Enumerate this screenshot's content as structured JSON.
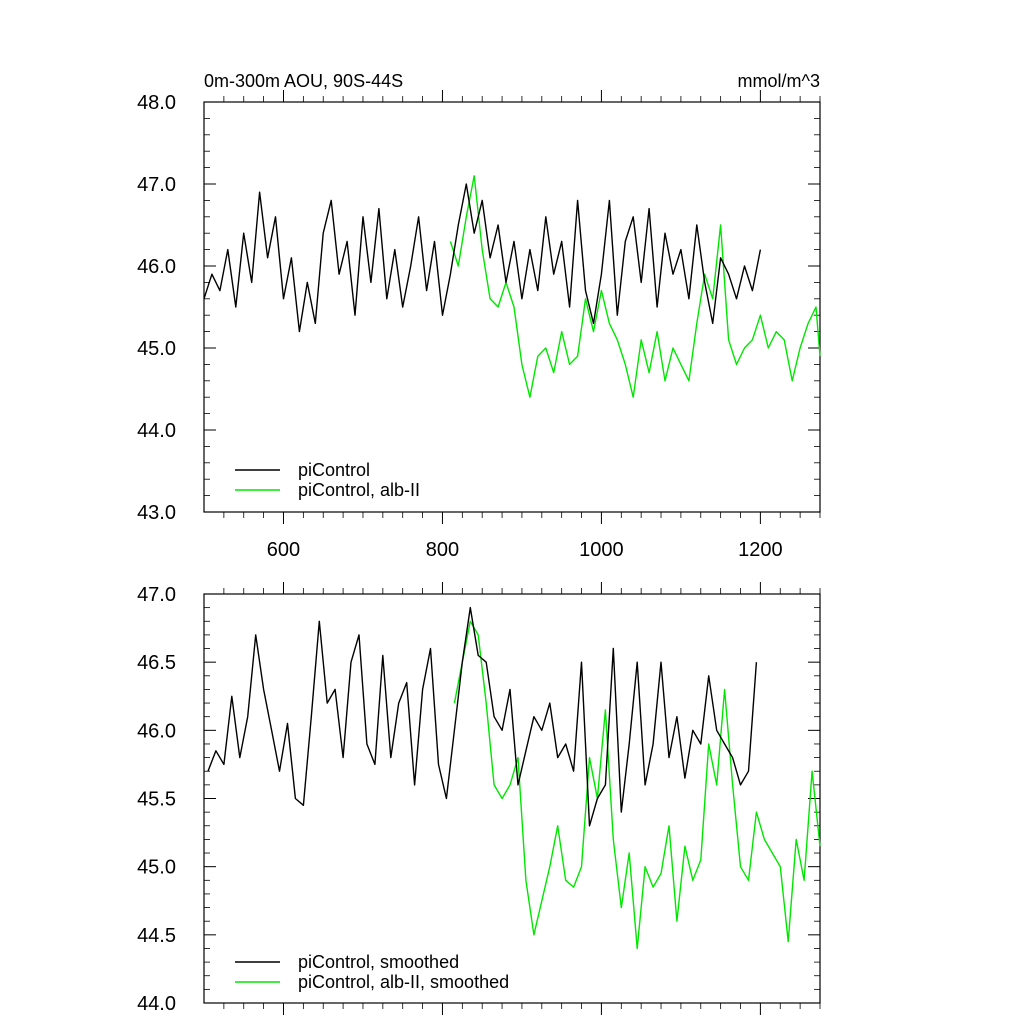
{
  "colors": {
    "control": "#000000",
    "alb": "#00e600",
    "axis": "#000000",
    "background": "#ffffff"
  },
  "chart_data": [
    {
      "type": "line",
      "title": "0m-300m AOU, 90S-44S",
      "units": "mmol/m^3",
      "xlabel": "",
      "ylabel": "",
      "xlim": [
        500,
        1275
      ],
      "ylim": [
        43.0,
        48.0
      ],
      "xticks": [
        "600",
        "800",
        "1000",
        "1200"
      ],
      "yticks": [
        "43.0",
        "44.0",
        "45.0",
        "46.0",
        "47.0",
        "48.0"
      ],
      "legend_position": "bottom-left",
      "grid": false,
      "series": [
        {
          "name": "piControl",
          "x": [
            500,
            510,
            520,
            530,
            540,
            550,
            560,
            570,
            580,
            590,
            600,
            610,
            620,
            630,
            640,
            650,
            660,
            670,
            680,
            690,
            700,
            710,
            720,
            730,
            740,
            750,
            760,
            770,
            780,
            790,
            800,
            810,
            820,
            830,
            840,
            850,
            860,
            870,
            880,
            890,
            900,
            910,
            920,
            930,
            940,
            950,
            960,
            970,
            980,
            990,
            1000,
            1010,
            1020,
            1030,
            1040,
            1050,
            1060,
            1070,
            1080,
            1090,
            1100,
            1110,
            1120,
            1130,
            1140,
            1150,
            1160,
            1170,
            1180,
            1190,
            1200
          ],
          "values": [
            45.6,
            45.9,
            45.7,
            46.2,
            45.5,
            46.4,
            45.8,
            46.9,
            46.1,
            46.6,
            45.6,
            46.1,
            45.2,
            45.8,
            45.3,
            46.4,
            46.8,
            45.9,
            46.3,
            45.4,
            46.6,
            45.8,
            46.7,
            45.6,
            46.2,
            45.5,
            46.0,
            46.6,
            45.7,
            46.3,
            45.4,
            45.9,
            46.5,
            47.0,
            46.4,
            46.8,
            46.1,
            46.5,
            45.8,
            46.3,
            45.6,
            46.2,
            45.7,
            46.6,
            45.9,
            46.3,
            45.5,
            46.8,
            45.7,
            45.3,
            45.9,
            46.8,
            45.4,
            46.3,
            46.6,
            45.8,
            46.7,
            45.5,
            46.4,
            45.9,
            46.2,
            45.6,
            46.5,
            45.8,
            45.3,
            46.1,
            45.9,
            45.6,
            46.0,
            45.7,
            46.2
          ]
        },
        {
          "name": "piControl, alb-II",
          "x": [
            810,
            820,
            830,
            840,
            850,
            860,
            870,
            880,
            890,
            900,
            910,
            920,
            930,
            940,
            950,
            960,
            970,
            980,
            990,
            1000,
            1010,
            1020,
            1030,
            1040,
            1050,
            1060,
            1070,
            1080,
            1090,
            1100,
            1110,
            1120,
            1130,
            1140,
            1150,
            1160,
            1170,
            1180,
            1190,
            1200,
            1210,
            1220,
            1230,
            1240,
            1250,
            1260,
            1270,
            1275
          ],
          "values": [
            46.3,
            46.0,
            46.6,
            47.1,
            46.2,
            45.6,
            45.5,
            45.8,
            45.5,
            44.8,
            44.4,
            44.9,
            45.0,
            44.7,
            45.2,
            44.8,
            44.9,
            45.6,
            45.2,
            45.7,
            45.3,
            45.1,
            44.8,
            44.4,
            45.1,
            44.7,
            45.2,
            44.6,
            45.0,
            44.8,
            44.6,
            45.3,
            45.9,
            45.6,
            46.5,
            45.1,
            44.8,
            45.0,
            45.1,
            45.4,
            45.0,
            45.2,
            45.1,
            44.6,
            45.0,
            45.3,
            45.5,
            44.9
          ]
        }
      ]
    },
    {
      "type": "line",
      "title": "",
      "xlabel": "",
      "ylabel": "",
      "xlim": [
        500,
        1275
      ],
      "ylim": [
        44.0,
        47.0
      ],
      "xticks": [],
      "yticks": [
        "44.0",
        "44.5",
        "45.0",
        "45.5",
        "46.0",
        "46.5",
        "47.0"
      ],
      "legend_position": "bottom-left",
      "grid": false,
      "series": [
        {
          "name": "piControl, smoothed",
          "x": [
            505,
            515,
            525,
            535,
            545,
            555,
            565,
            575,
            585,
            595,
            605,
            615,
            625,
            635,
            645,
            655,
            665,
            675,
            685,
            695,
            705,
            715,
            725,
            735,
            745,
            755,
            765,
            775,
            785,
            795,
            805,
            815,
            825,
            835,
            845,
            855,
            865,
            875,
            885,
            895,
            905,
            915,
            925,
            935,
            945,
            955,
            965,
            975,
            985,
            995,
            1005,
            1015,
            1025,
            1035,
            1045,
            1055,
            1065,
            1075,
            1085,
            1095,
            1105,
            1115,
            1125,
            1135,
            1145,
            1155,
            1165,
            1175,
            1185,
            1195
          ],
          "values": [
            45.7,
            45.85,
            45.75,
            46.25,
            45.8,
            46.1,
            46.7,
            46.3,
            46.0,
            45.7,
            46.05,
            45.5,
            45.45,
            46.1,
            46.8,
            46.2,
            46.3,
            45.8,
            46.5,
            46.7,
            45.9,
            45.75,
            46.55,
            45.8,
            46.2,
            46.35,
            45.6,
            46.3,
            46.6,
            45.75,
            45.5,
            46.0,
            46.5,
            46.9,
            46.55,
            46.5,
            46.1,
            46.0,
            46.3,
            45.6,
            45.85,
            46.1,
            46.0,
            46.2,
            45.8,
            45.9,
            45.7,
            46.5,
            45.3,
            45.5,
            45.6,
            46.6,
            45.4,
            45.9,
            46.5,
            45.6,
            45.9,
            46.5,
            45.8,
            46.1,
            45.65,
            46.0,
            45.9,
            46.4,
            46.0,
            45.9,
            45.8,
            45.6,
            45.7,
            46.5
          ]
        },
        {
          "name": "piControl, alb-II, smoothed",
          "x": [
            815,
            825,
            835,
            845,
            855,
            865,
            875,
            885,
            895,
            905,
            915,
            925,
            935,
            945,
            955,
            965,
            975,
            985,
            995,
            1005,
            1015,
            1025,
            1035,
            1045,
            1055,
            1065,
            1075,
            1085,
            1095,
            1105,
            1115,
            1125,
            1135,
            1145,
            1155,
            1165,
            1175,
            1185,
            1195,
            1205,
            1215,
            1225,
            1235,
            1245,
            1255,
            1265,
            1275
          ],
          "values": [
            46.2,
            46.5,
            46.8,
            46.7,
            46.2,
            45.6,
            45.5,
            45.6,
            45.8,
            44.9,
            44.5,
            44.75,
            45.0,
            45.3,
            44.9,
            44.85,
            45.0,
            45.8,
            45.5,
            46.15,
            45.2,
            44.7,
            45.1,
            44.4,
            45.0,
            44.85,
            44.95,
            45.3,
            44.6,
            45.15,
            44.9,
            45.05,
            45.9,
            45.6,
            46.3,
            45.6,
            45.0,
            44.9,
            45.4,
            45.2,
            45.1,
            45.0,
            44.45,
            45.2,
            44.9,
            45.7,
            45.15
          ]
        }
      ]
    }
  ]
}
